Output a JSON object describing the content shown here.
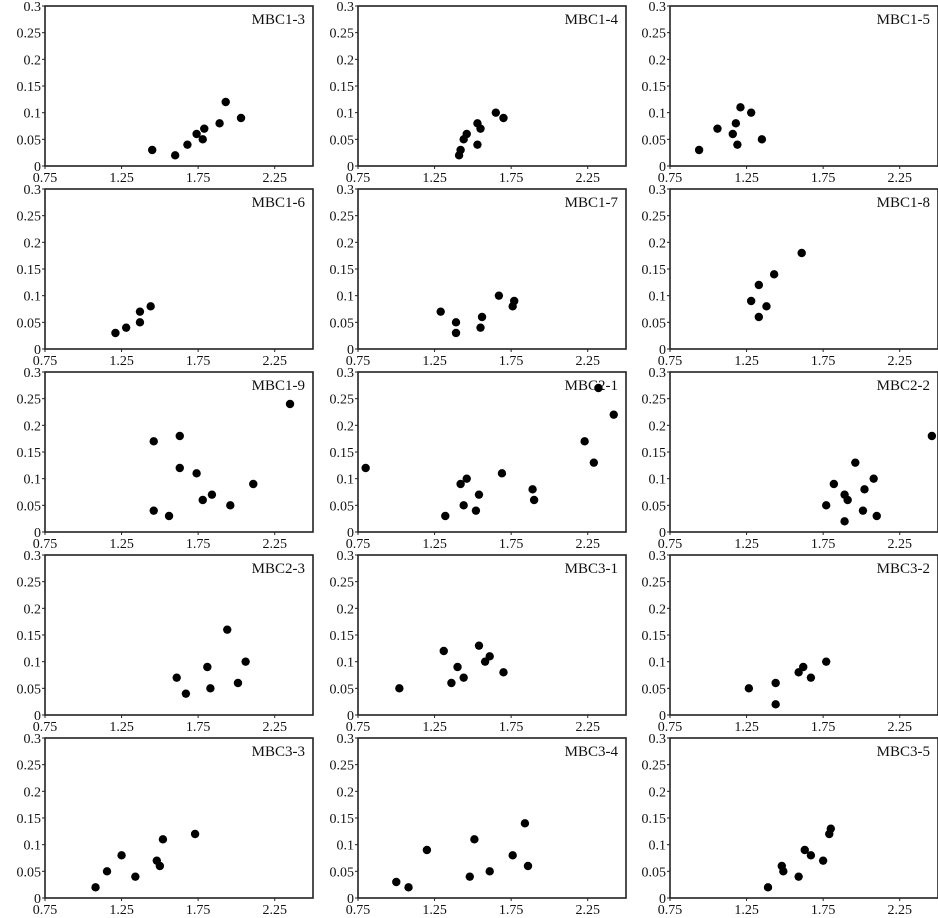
{
  "chart_data": {
    "type": "scatter",
    "layout": "grid 5 rows x 3 columns",
    "xlim": [
      0.75,
      2.5
    ],
    "ylim": [
      0,
      0.3
    ],
    "xticks": [
      "0.75",
      "1.25",
      "1.75",
      "2.25"
    ],
    "xtick_values": [
      0.75,
      1.25,
      1.75,
      2.25
    ],
    "yticks": [
      "0",
      "0.05",
      "0.1",
      "0.15",
      "0.2",
      "0.25",
      "0.3"
    ],
    "ytick_values": [
      0,
      0.05,
      0.1,
      0.15,
      0.2,
      0.25,
      0.3
    ],
    "marker_color": "#000000",
    "panels": [
      {
        "title": "MBC1-3",
        "x": [
          1.45,
          1.6,
          1.68,
          1.74,
          1.78,
          1.79,
          1.89,
          1.93,
          2.03
        ],
        "y": [
          0.03,
          0.02,
          0.04,
          0.06,
          0.05,
          0.07,
          0.08,
          0.12,
          0.09
        ]
      },
      {
        "title": "MBC1-4",
        "x": [
          1.41,
          1.42,
          1.44,
          1.46,
          1.53,
          1.53,
          1.55,
          1.65,
          1.7
        ],
        "y": [
          0.02,
          0.03,
          0.05,
          0.06,
          0.08,
          0.04,
          0.07,
          0.1,
          0.09
        ]
      },
      {
        "title": "MBC1-5",
        "x": [
          0.94,
          1.06,
          1.16,
          1.18,
          1.21,
          1.19,
          1.28,
          1.35
        ],
        "y": [
          0.03,
          0.07,
          0.06,
          0.08,
          0.11,
          0.04,
          0.1,
          0.05
        ]
      },
      {
        "title": "MBC1-6",
        "x": [
          1.21,
          1.28,
          1.37,
          1.37,
          1.44
        ],
        "y": [
          0.03,
          0.04,
          0.05,
          0.07,
          0.08
        ]
      },
      {
        "title": "MBC1-7",
        "x": [
          1.29,
          1.39,
          1.39,
          1.55,
          1.56,
          1.67,
          1.76,
          1.77
        ],
        "y": [
          0.07,
          0.05,
          0.03,
          0.04,
          0.06,
          0.1,
          0.08,
          0.09
        ]
      },
      {
        "title": "MBC1-8",
        "x": [
          1.28,
          1.33,
          1.33,
          1.38,
          1.43,
          1.61
        ],
        "y": [
          0.09,
          0.12,
          0.06,
          0.08,
          0.14,
          0.18
        ]
      },
      {
        "title": "MBC1-9",
        "x": [
          1.46,
          1.46,
          1.56,
          1.63,
          1.63,
          1.74,
          1.78,
          1.84,
          1.96,
          2.11,
          2.35
        ],
        "y": [
          0.17,
          0.04,
          0.03,
          0.18,
          0.12,
          0.11,
          0.06,
          0.07,
          0.05,
          0.09,
          0.24
        ]
      },
      {
        "title": "MBC2-1",
        "x": [
          0.8,
          1.32,
          1.42,
          1.44,
          1.46,
          1.52,
          1.54,
          1.69,
          1.89,
          1.9,
          2.23,
          2.29,
          2.32,
          2.42
        ],
        "y": [
          0.12,
          0.03,
          0.09,
          0.05,
          0.1,
          0.04,
          0.07,
          0.11,
          0.08,
          0.06,
          0.17,
          0.13,
          0.27,
          0.22
        ]
      },
      {
        "title": "MBC2-2",
        "x": [
          1.77,
          1.82,
          1.89,
          1.89,
          1.91,
          1.96,
          2.01,
          2.02,
          2.08,
          2.1,
          2.46
        ],
        "y": [
          0.05,
          0.09,
          0.02,
          0.07,
          0.06,
          0.13,
          0.04,
          0.08,
          0.1,
          0.03,
          0.18
        ]
      },
      {
        "title": "MBC2-3",
        "x": [
          1.61,
          1.67,
          1.81,
          1.83,
          1.94,
          2.01,
          2.06
        ],
        "y": [
          0.07,
          0.04,
          0.09,
          0.05,
          0.16,
          0.06,
          0.1
        ]
      },
      {
        "title": "MBC3-1",
        "x": [
          1.02,
          1.31,
          1.36,
          1.4,
          1.44,
          1.54,
          1.58,
          1.61,
          1.7
        ],
        "y": [
          0.05,
          0.12,
          0.06,
          0.09,
          0.07,
          0.13,
          0.1,
          0.11,
          0.08
        ]
      },
      {
        "title": "MBC3-2",
        "x": [
          1.265,
          1.44,
          1.44,
          1.59,
          1.62,
          1.67,
          1.77
        ],
        "y": [
          0.05,
          0.06,
          0.02,
          0.08,
          0.09,
          0.07,
          0.1
        ]
      },
      {
        "title": "MBC3-3",
        "x": [
          1.08,
          1.155,
          1.25,
          1.34,
          1.48,
          1.5,
          1.52,
          1.73
        ],
        "y": [
          0.02,
          0.05,
          0.08,
          0.04,
          0.07,
          0.06,
          0.11,
          0.12
        ]
      },
      {
        "title": "MBC3-4",
        "x": [
          1.0,
          1.08,
          1.2,
          1.48,
          1.51,
          1.61,
          1.76,
          1.84,
          1.86
        ],
        "y": [
          0.03,
          0.02,
          0.09,
          0.04,
          0.11,
          0.05,
          0.08,
          0.14,
          0.06
        ]
      },
      {
        "title": "MBC3-5",
        "x": [
          1.39,
          1.48,
          1.49,
          1.59,
          1.63,
          1.67,
          1.75,
          1.79,
          1.8
        ],
        "y": [
          0.02,
          0.06,
          0.05,
          0.04,
          0.09,
          0.08,
          0.07,
          0.12,
          0.13
        ]
      }
    ]
  }
}
